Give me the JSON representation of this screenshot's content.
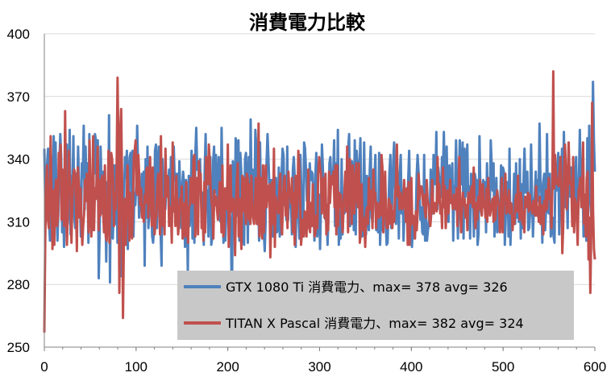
{
  "chart_data": {
    "type": "line",
    "title": "消費電力比較",
    "xlabel": "",
    "ylabel": "",
    "xlim": [
      0,
      600
    ],
    "ylim": [
      250,
      400
    ],
    "xticks": [
      0,
      100,
      200,
      300,
      400,
      500,
      600
    ],
    "yticks": [
      250,
      280,
      310,
      340,
      370,
      400
    ],
    "grid": {
      "horizontal": true,
      "vertical": false,
      "color": "#d9d9d9"
    },
    "legend": {
      "placement": "bottom-right",
      "background": "#c8c8c8"
    },
    "series": [
      {
        "name": "GTX 1080 Ti 消費電力、max= 378  avg= 326",
        "color": "#4f81bd",
        "values": [
          345,
          318,
          329,
          338,
          345,
          311,
          301,
          329,
          341,
          323,
          351,
          316,
          348,
          320,
          301,
          315,
          336,
          352,
          341,
          305,
          326,
          298,
          333,
          342,
          347,
          309,
          318,
          354,
          304,
          332,
          327,
          351,
          312,
          307,
          333,
          320,
          346,
          328,
          319,
          303,
          338,
          331,
          356,
          316,
          346,
          325,
          338,
          300,
          352,
          308,
          318,
          306,
          341,
          333,
          352,
          349,
          321,
          349,
          283,
          305,
          346,
          326,
          314,
          334,
          318,
          325,
          291,
          329,
          308,
          361,
          281,
          337,
          324,
          302,
          317,
          337,
          309,
          335,
          300,
          319,
          339,
          343,
          284,
          324,
          298,
          322,
          341,
          331,
          344,
          297,
          334,
          341,
          343,
          308,
          344,
          303,
          324,
          318,
          328,
          356,
          335,
          312,
          320,
          319,
          333,
          319,
          334,
          289,
          340,
          312,
          346,
          307,
          316,
          319,
          321,
          303,
          300,
          307,
          344,
          347,
          307,
          338,
          346,
          311,
          305,
          289,
          340,
          317,
          332,
          316,
          326,
          325,
          326,
          335,
          315,
          341,
          334,
          327,
          346,
          330,
          333,
          309,
          333,
          310,
          339,
          322,
          307,
          327,
          334,
          327,
          298,
          330,
          319,
          285,
          332,
          308,
          317,
          344,
          302,
          341,
          300,
          342,
          355,
          335,
          338,
          329,
          340,
          322,
          312,
          324,
          299,
          335,
          352,
          320,
          325,
          303,
          330,
          341,
          299,
          302,
          339,
          346,
          324,
          342,
          328,
          316,
          341,
          311,
          310,
          355,
          328,
          300,
          325,
          301,
          314,
          324,
          323,
          321,
          312,
          310,
          263,
          339,
          331,
          305,
          350,
          347,
          313,
          349,
          301,
          343,
          334,
          304,
          303,
          299,
          340,
          343,
          328,
          300,
          341,
          309,
          359,
          322,
          335,
          321,
          316,
          354,
          346,
          314,
          324,
          301,
          348,
          321,
          314,
          318,
          305,
          296,
          311,
          339,
          352,
          340,
          325,
          330,
          313,
          330,
          303,
          331,
          326,
          331,
          305,
          307,
          336,
          303,
          319,
          333,
          345,
          342,
          318,
          330,
          311,
          346,
          311,
          325,
          317,
          320,
          304,
          335,
          341,
          331,
          298,
          325,
          317,
          313,
          302,
          342,
          326,
          317,
          304,
          348,
          345,
          335,
          320,
          329,
          313,
          338,
          330,
          334,
          333,
          318,
          301,
          332,
          343,
          303,
          311,
          323,
          297,
          319,
          347,
          336,
          318,
          312,
          311,
          315,
          299,
          314,
          338,
          341,
          329,
          329,
          332,
          349,
          308,
          338,
          314,
          354,
          299,
          309,
          302,
          340,
          304,
          317,
          314,
          317,
          316,
          325,
          345,
          352,
          308,
          318,
          339,
          327,
          306,
          349,
          304,
          344,
          336,
          339,
          335,
          350,
          321,
          303,
          304,
          348,
          316,
          304,
          332,
          311,
          306,
          335,
          346,
          312,
          310,
          325,
          331,
          342,
          306,
          314,
          305,
          343,
          299,
          313,
          306,
          327,
          319,
          309,
          310,
          299,
          300,
          318,
          334,
          342,
          307,
          321,
          339,
          348,
          326,
          309,
          330,
          333,
          302,
          333,
          342,
          314,
          325,
          301,
          314,
          315,
          316,
          318,
          330,
          344,
          320,
          317,
          298,
          309,
          311,
          302,
          309,
          332,
          342,
          334,
          325,
          311,
          317,
          305,
          304,
          342,
          301,
          315,
          301,
          306,
          309,
          313,
          335,
          320,
          314,
          342,
          337,
          328,
          353,
          316,
          336,
          331,
          331,
          322,
          341,
          332,
          353,
          330,
          315,
          346,
          322,
          310,
          337,
          321,
          329,
          338,
          301,
          327,
          326,
          349,
          324,
          302,
          332,
          349,
          330,
          328,
          348,
          302,
          345,
          322,
          338,
          347,
          318,
          327,
          302,
          333,
          321,
          323,
          303,
          333,
          330,
          330,
          299,
          304,
          351,
          324,
          322,
          325,
          330,
          320,
          329,
          305,
          338,
          315,
          315,
          315,
          349,
          337,
          325,
          338,
          303,
          314,
          331,
          305,
          307,
          320,
          313,
          337,
          324,
          336,
          334,
          299,
          313,
          314,
          329,
          303,
          345,
          299,
          314,
          311,
          316,
          333,
          309,
          338,
          312,
          327,
          310,
          340,
          302,
          328,
          307,
          330,
          345,
          324,
          331,
          334,
          306,
          307,
          315,
          347,
          322,
          303,
          317,
          323,
          334,
          319,
          330,
          320,
          357,
          330,
          323,
          300,
          329,
          333,
          306,
          316,
          352,
          315,
          314,
          333,
          303,
          306,
          312,
          303,
          300,
          337,
          325,
          333,
          343,
          304,
          340,
          332,
          345,
          318,
          353,
          318,
          317,
          324,
          307,
          344,
          324,
          322,
          336,
          318,
          334,
          312,
          333,
          341,
          315,
          312,
          330,
          354,
          328,
          324,
          327,
          303,
          320,
          308,
          301,
          350,
          320,
          356,
          320,
          314,
          310,
          377,
          349,
          334
        ]
      },
      {
        "name": "TITAN X Pascal 消費電力、max= 382  avg= 324",
        "color": "#c0504d",
        "values": [
          257,
          301,
          327,
          337,
          311,
          307,
          323,
          351,
          320,
          297,
          325,
          299,
          324,
          330,
          308,
          312,
          343,
          338,
          347,
          311,
          335,
          317,
          308,
          363,
          317,
          299,
          315,
          344,
          332,
          325,
          300,
          320,
          332,
          335,
          333,
          319,
          296,
          336,
          330,
          312,
          326,
          310,
          299,
          308,
          314,
          330,
          320,
          333,
          320,
          305,
          349,
          326,
          303,
          317,
          351,
          306,
          326,
          321,
          331,
          346,
          306,
          330,
          313,
          328,
          332,
          316,
          305,
          337,
          303,
          301,
          313,
          344,
          300,
          321,
          343,
          340,
          330,
          308,
          324,
          316,
          336,
          379,
          345,
          276,
          353,
          364,
          329,
          264,
          301,
          321,
          299,
          317,
          337,
          323,
          301,
          324,
          305,
          302,
          316,
          341,
          344,
          349,
          324,
          323,
          342,
          332,
          318,
          326,
          312,
          318,
          310,
          323,
          319,
          335,
          336,
          312,
          331,
          341,
          318,
          308,
          336,
          319,
          304,
          311,
          313,
          328,
          333,
          319,
          304,
          351,
          313,
          308,
          321,
          304,
          345,
          322,
          332,
          331,
          308,
          315,
          317,
          300,
          348,
          315,
          321,
          308,
          332,
          318,
          304,
          309,
          321,
          318,
          327,
          302,
          316,
          319,
          303,
          329,
          311,
          300,
          317,
          318,
          331,
          330,
          319,
          340,
          342,
          303,
          325,
          331,
          304,
          339,
          325,
          333,
          307,
          315,
          301,
          329,
          305,
          341,
          330,
          328,
          347,
          339,
          326,
          320,
          316,
          302,
          325,
          318,
          322,
          316,
          311,
          318,
          329,
          321,
          305,
          337,
          303,
          306,
          326,
          316,
          317,
          347,
          298,
          308,
          337,
          315,
          321,
          321,
          312,
          294,
          320,
          330,
          338,
          303,
          321,
          307,
          297,
          332,
          315,
          331,
          318,
          309,
          333,
          331,
          311,
          328,
          309,
          332,
          317,
          312,
          309,
          320,
          331,
          309,
          309,
          357,
          303,
          314,
          331,
          302,
          337,
          305,
          326,
          337,
          317,
          323,
          327,
          328,
          293,
          311,
          329,
          309,
          345,
          298,
          322,
          318,
          317,
          314,
          326,
          333,
          310,
          304,
          321,
          330,
          332,
          313,
          324,
          307,
          334,
          325,
          324,
          319,
          331,
          305,
          324,
          299,
          332,
          312,
          319,
          344,
          335,
          320,
          299,
          305,
          311,
          303,
          315,
          312,
          303,
          317,
          335,
          307,
          305,
          319,
          308,
          328,
          315,
          303,
          305,
          313,
          307,
          333,
          341,
          336,
          333,
          314,
          327,
          331,
          312,
          333,
          304,
          318,
          306,
          334,
          319,
          328,
          332,
          328,
          334,
          317,
          337,
          304,
          337,
          308,
          324,
          317,
          323,
          313,
          305,
          317,
          325,
          334,
          315,
          346,
          305,
          328,
          340,
          323,
          309,
          337,
          331,
          314,
          327,
          338,
          321,
          317,
          338,
          300,
          304,
          328,
          306,
          312,
          308,
          298,
          314,
          317,
          309,
          331,
          316,
          323,
          325,
          307,
          335,
          320,
          324,
          307,
          319,
          316,
          312,
          319,
          313,
          342,
          336,
          305,
          320,
          334,
          314,
          307,
          307,
          321,
          319,
          309,
          318,
          307,
          315,
          310,
          323,
          328,
          347,
          322,
          327,
          316,
          324,
          321,
          316,
          318,
          330,
          318,
          310,
          326,
          299,
          329,
          299,
          312,
          331,
          309,
          313,
          310,
          302,
          315,
          306,
          315,
          333,
          321,
          326,
          327,
          325,
          318,
          323,
          315,
          312,
          330,
          320,
          319,
          311,
          308,
          314,
          330,
          318,
          314,
          319,
          317,
          315,
          341,
          319,
          328,
          314,
          318,
          307,
          336,
          317,
          327,
          307,
          315,
          325,
          314,
          323,
          330,
          319,
          321,
          316,
          323,
          321,
          316,
          326,
          308,
          322,
          341,
          319,
          305,
          316,
          324,
          318,
          321,
          312,
          318,
          306,
          324,
          322,
          319,
          325,
          327,
          317,
          336,
          314,
          307,
          319,
          311,
          322,
          316,
          330,
          316,
          313,
          328,
          317,
          319,
          312,
          326,
          310,
          331,
          320,
          313,
          316,
          319,
          321,
          310,
          322,
          311,
          319,
          325,
          320,
          318,
          305,
          313,
          331,
          305,
          322,
          321,
          333,
          314,
          322,
          315,
          325,
          314,
          319,
          318,
          306,
          313,
          309,
          320,
          323,
          315,
          332,
          317,
          311,
          324,
          320,
          309,
          315,
          305,
          322,
          317,
          319,
          324,
          315,
          323,
          316,
          318,
          314,
          320,
          319,
          313,
          327,
          313,
          317,
          310,
          322,
          309,
          318,
          316,
          304,
          320,
          315,
          325,
          316,
          323,
          331,
          321,
          321,
          307,
          326,
          382,
          326,
          342,
          333,
          328,
          330,
          327,
          335,
          341,
          326,
          295,
          308,
          336,
          347,
          335,
          316,
          324,
          348,
          333,
          328,
          328,
          308,
          341,
          305,
          321,
          319,
          312,
          299,
          325,
          327,
          331,
          317,
          325,
          348,
          309,
          323,
          303,
          331,
          334,
          292,
          312,
          276,
          305,
          367,
          316,
          297,
          292
        ]
      }
    ]
  }
}
